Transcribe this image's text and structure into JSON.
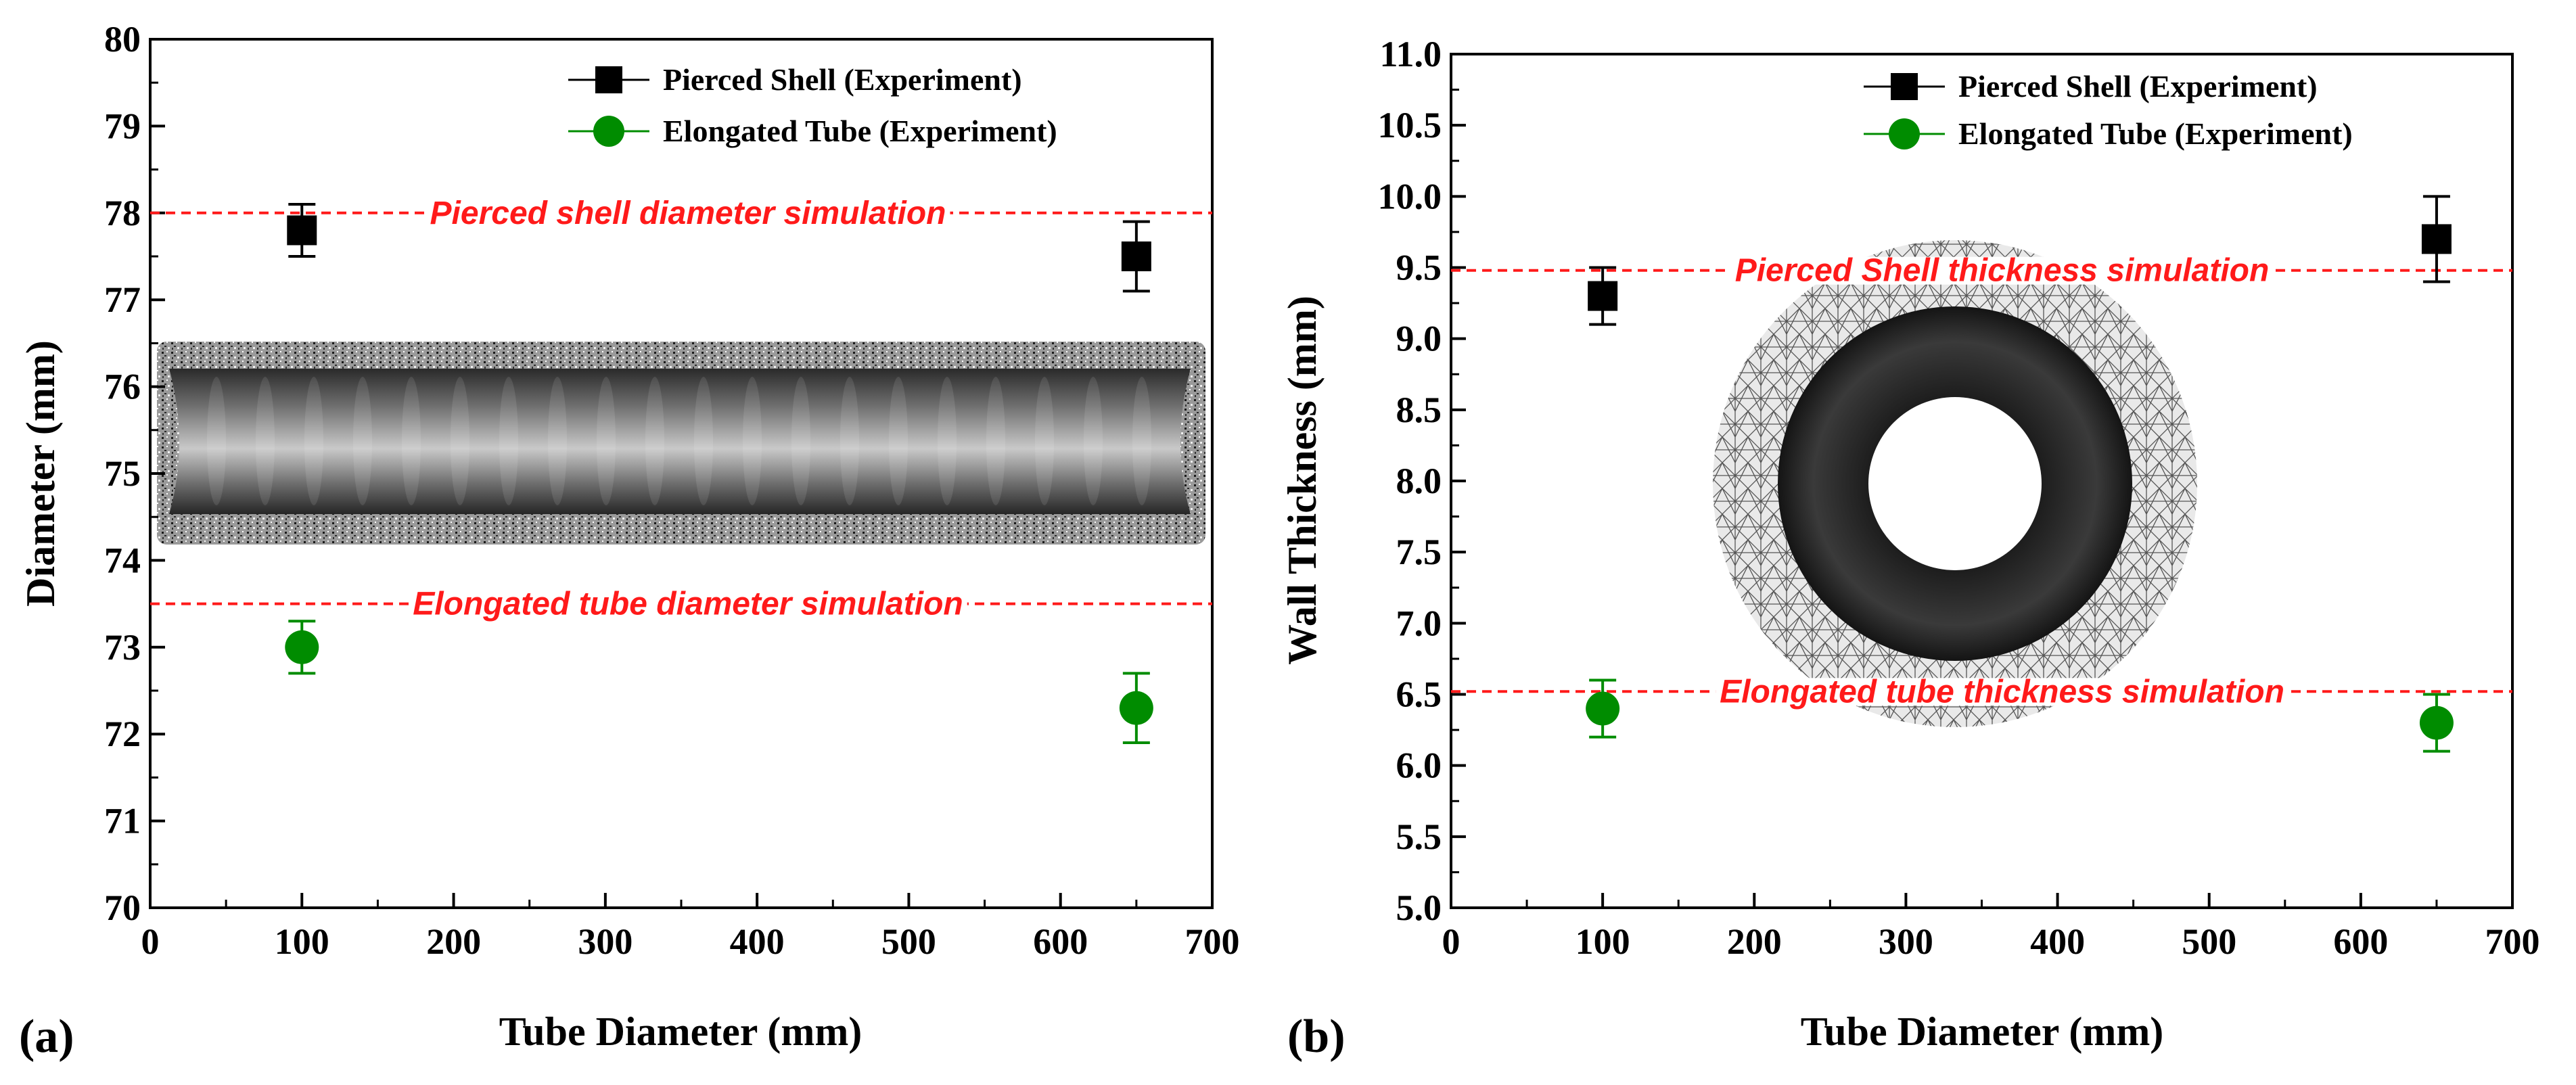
{
  "chart_data": [
    {
      "type": "scatter",
      "panel_label": "(a)",
      "xlabel": "Tube Diameter (mm)",
      "ylabel": "Diameter (mm)",
      "xlim": [
        0,
        700
      ],
      "ylim": [
        70,
        80
      ],
      "xticks": [
        0,
        100,
        200,
        300,
        400,
        500,
        600,
        700
      ],
      "yticks": [
        70,
        71,
        72,
        73,
        74,
        75,
        76,
        77,
        78,
        79,
        80
      ],
      "legend_position": "top-right",
      "series": [
        {
          "name": "Pierced Shell (Experiment)",
          "marker": "square",
          "color": "#000000",
          "x": [
            100,
            650
          ],
          "y": [
            77.8,
            77.5
          ],
          "err_low": [
            77.5,
            77.1
          ],
          "err_high": [
            78.1,
            77.9
          ]
        },
        {
          "name": "Elongated Tube (Experiment)",
          "marker": "circle",
          "color": "#008c00",
          "x": [
            100,
            650
          ],
          "y": [
            73.0,
            72.3
          ],
          "err_low": [
            72.7,
            71.9
          ],
          "err_high": [
            73.3,
            72.7
          ]
        }
      ],
      "reference_lines": [
        {
          "label": "Pierced shell diameter simulation",
          "y": 78.0,
          "color": "#ff1a1a"
        },
        {
          "label": "Elongated tube diameter simulation",
          "y": 73.5,
          "color": "#ff1a1a"
        }
      ],
      "inset_image": "tube-longitudinal-section-render"
    },
    {
      "type": "scatter",
      "panel_label": "(b)",
      "xlabel": "Tube Diameter (mm)",
      "ylabel": "Wall Thickness (mm)",
      "xlim": [
        0,
        700
      ],
      "ylim": [
        5.0,
        11.0
      ],
      "xticks": [
        0,
        100,
        200,
        300,
        400,
        500,
        600,
        700
      ],
      "yticks": [
        "5.0",
        "5.5",
        "6.0",
        "6.5",
        "7.0",
        "7.5",
        "8.0",
        "8.5",
        "9.0",
        "9.5",
        "10.0",
        "10.5",
        "11.0"
      ],
      "legend_position": "top-right",
      "series": [
        {
          "name": "Pierced Shell (Experiment)",
          "marker": "square",
          "color": "#000000",
          "x": [
            100,
            650
          ],
          "y": [
            9.3,
            9.7
          ],
          "err_low": [
            9.1,
            9.4
          ],
          "err_high": [
            9.5,
            10.0
          ]
        },
        {
          "name": "Elongated Tube (Experiment)",
          "marker": "circle",
          "color": "#008c00",
          "x": [
            100,
            650
          ],
          "y": [
            6.4,
            6.3
          ],
          "err_low": [
            6.2,
            6.1
          ],
          "err_high": [
            6.6,
            6.5
          ]
        }
      ],
      "reference_lines": [
        {
          "label": "Pierced Shell thickness simulation",
          "y": 9.48,
          "color": "#ff1a1a"
        },
        {
          "label": "Elongated tube thickness simulation",
          "y": 6.52,
          "color": "#ff1a1a"
        }
      ],
      "inset_image": "tube-cross-section-mesh-render"
    }
  ]
}
